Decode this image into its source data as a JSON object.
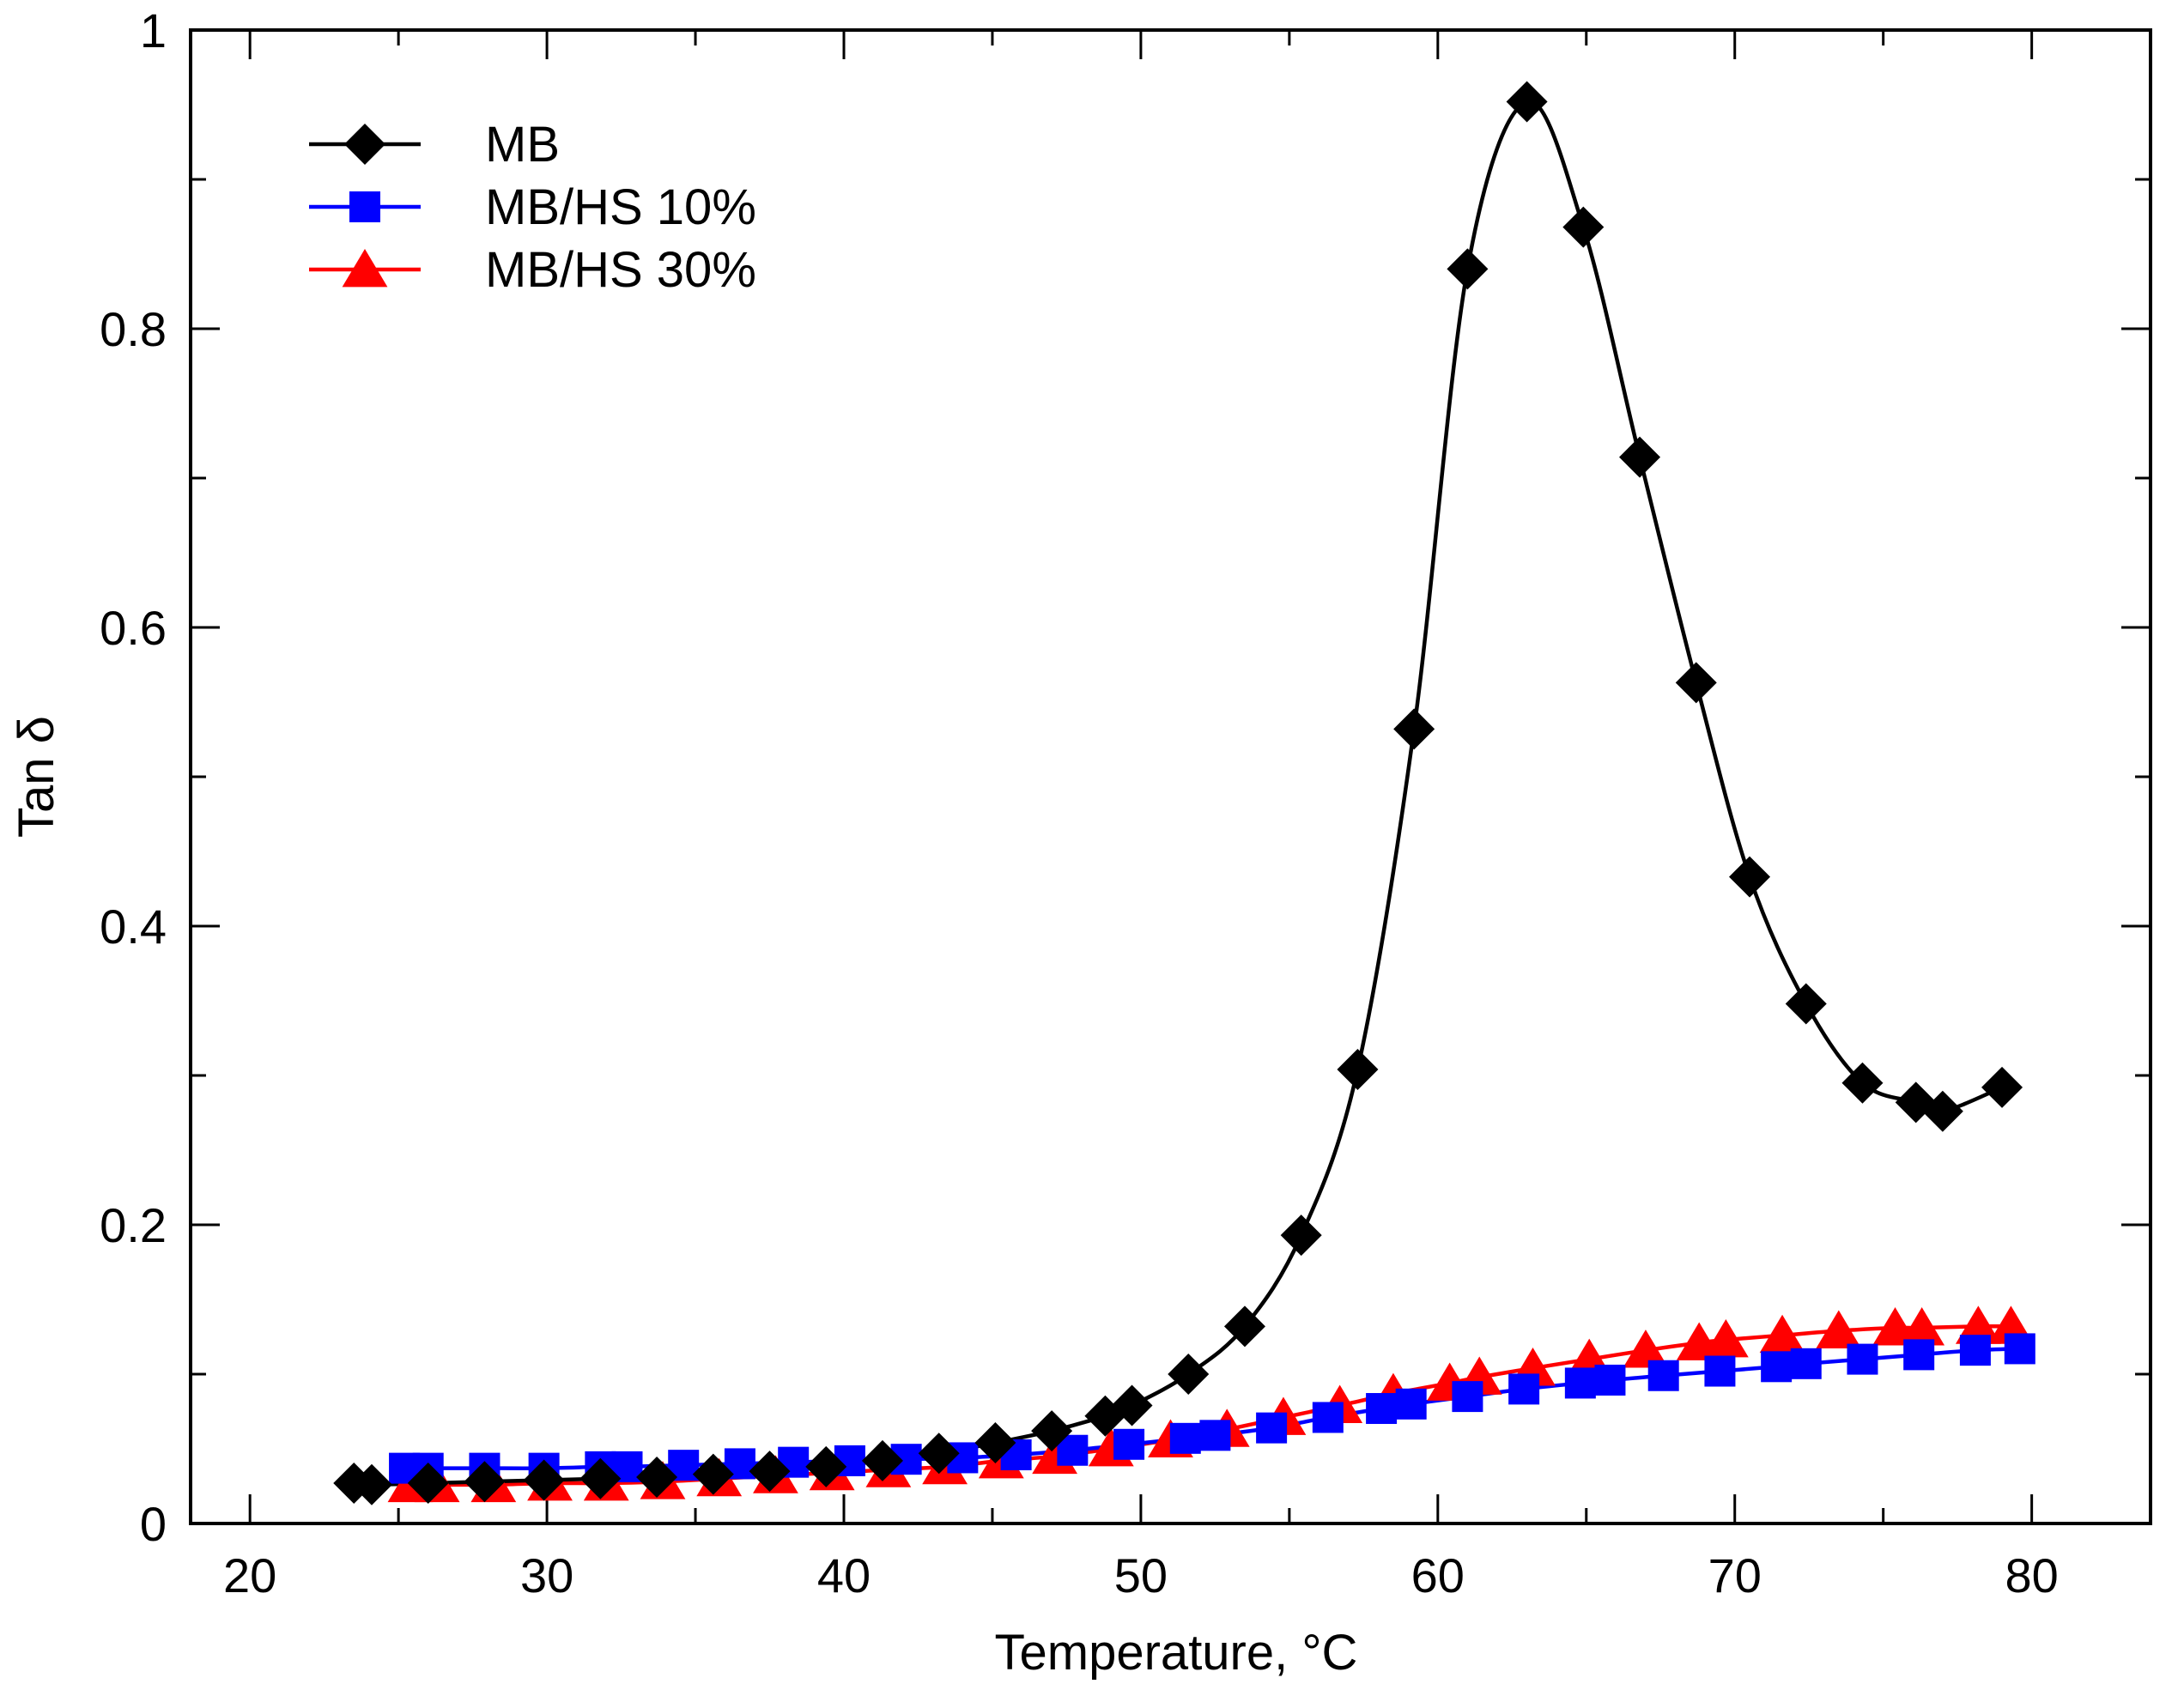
{
  "chart_data": {
    "type": "line",
    "title": "",
    "xlabel": "Temperature,  °C",
    "ylabel": "Tan δ",
    "xlim": [
      18,
      84
    ],
    "ylim": [
      0,
      1
    ],
    "xticks": [
      20,
      30,
      40,
      50,
      60,
      70,
      80
    ],
    "xtick_labels": [
      "20",
      "30",
      "40",
      "50",
      "60",
      "70",
      "80"
    ],
    "yticks": [
      0,
      0.2,
      0.4,
      0.6,
      0.8,
      1
    ],
    "ytick_labels": [
      "0",
      "0.2",
      "0.4",
      "0.6",
      "0.8",
      "1"
    ],
    "grid": false,
    "legend": "top-left",
    "series": [
      {
        "name": "MB",
        "color": "#000000",
        "marker": "diamond",
        "x": [
          23.5,
          24.1,
          26.0,
          27.9,
          29.9,
          31.8,
          33.7,
          35.6,
          37.5,
          39.4,
          41.3,
          43.2,
          45.1,
          47.0,
          48.8,
          49.7,
          51.6,
          53.5,
          55.4,
          57.3,
          59.2,
          61.0,
          63.0,
          64.9,
          66.8,
          68.7,
          70.5,
          72.4,
          74.3,
          76.1,
          77.0,
          79.0
        ],
        "y": [
          0.027,
          0.026,
          0.027,
          0.028,
          0.029,
          0.03,
          0.031,
          0.033,
          0.035,
          0.038,
          0.042,
          0.047,
          0.054,
          0.062,
          0.072,
          0.079,
          0.1,
          0.132,
          0.193,
          0.304,
          0.532,
          0.84,
          0.952,
          0.868,
          0.714,
          0.563,
          0.433,
          0.348,
          0.295,
          0.282,
          0.276,
          0.292
        ]
      },
      {
        "name": "MB/HS 10%",
        "color": "#0000ff",
        "marker": "square",
        "x": [
          25.2,
          26.0,
          27.9,
          29.9,
          31.8,
          32.7,
          34.6,
          36.5,
          38.3,
          40.2,
          42.1,
          44.0,
          45.8,
          47.7,
          49.6,
          51.5,
          52.5,
          54.4,
          56.3,
          58.1,
          59.1,
          61.0,
          62.9,
          64.8,
          65.8,
          67.6,
          69.5,
          71.4,
          72.4,
          74.3,
          76.2,
          78.1,
          79.6
        ],
        "y": [
          0.037,
          0.037,
          0.037,
          0.037,
          0.038,
          0.038,
          0.039,
          0.04,
          0.041,
          0.042,
          0.043,
          0.044,
          0.046,
          0.049,
          0.053,
          0.057,
          0.059,
          0.064,
          0.071,
          0.077,
          0.08,
          0.085,
          0.09,
          0.094,
          0.096,
          0.099,
          0.102,
          0.105,
          0.107,
          0.11,
          0.113,
          0.116,
          0.117
        ]
      },
      {
        "name": "MB/HS 30%",
        "color": "#ff0000",
        "marker": "triangle",
        "x": [
          25.4,
          26.3,
          28.2,
          30.1,
          32.0,
          33.9,
          35.8,
          37.7,
          39.6,
          41.5,
          43.4,
          45.3,
          47.1,
          49.0,
          51.0,
          52.9,
          54.8,
          56.7,
          58.5,
          60.4,
          61.4,
          63.2,
          65.1,
          67.0,
          68.8,
          69.7,
          71.6,
          73.5,
          75.4,
          76.3,
          78.2,
          79.3
        ],
        "y": [
          0.026,
          0.026,
          0.026,
          0.027,
          0.027,
          0.028,
          0.03,
          0.032,
          0.034,
          0.036,
          0.038,
          0.042,
          0.045,
          0.05,
          0.056,
          0.063,
          0.071,
          0.079,
          0.087,
          0.094,
          0.098,
          0.104,
          0.11,
          0.116,
          0.121,
          0.123,
          0.126,
          0.129,
          0.131,
          0.131,
          0.132,
          0.132
        ]
      }
    ]
  }
}
